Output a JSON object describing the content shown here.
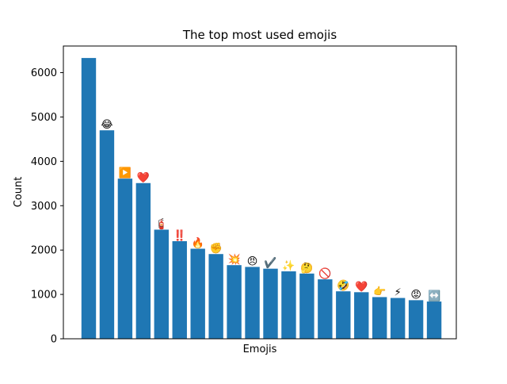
{
  "chart_data": {
    "type": "bar",
    "title": "The top most used emojis",
    "xlabel": "Emojis",
    "ylabel": "Count",
    "ylim": [
      0,
      6600
    ],
    "yticks": [
      0,
      1000,
      2000,
      3000,
      4000,
      5000,
      6000
    ],
    "grid": false,
    "bar_color": "#1f77b4",
    "categories": [
      "",
      "😂",
      "▶️",
      "❤️",
      "🧯",
      "‼️",
      "🔥",
      "✊",
      "💥",
      "😠",
      "✔️",
      "✨",
      "🤔",
      "🚫",
      "🤣",
      "❤️",
      "👉",
      "⚡",
      "😡",
      "↔️"
    ],
    "values": [
      6330,
      4700,
      3610,
      3510,
      2460,
      2200,
      2030,
      1910,
      1660,
      1620,
      1580,
      1520,
      1470,
      1340,
      1070,
      1050,
      940,
      920,
      870,
      840
    ]
  }
}
